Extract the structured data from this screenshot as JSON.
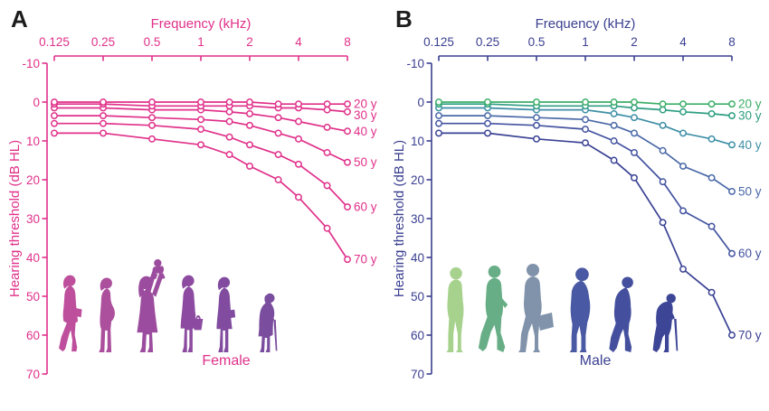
{
  "figure": {
    "panels": [
      {
        "label": "A",
        "gender_label": "Female",
        "accent_color": "#E0308A",
        "x_axis": {
          "title": "Frequency (kHz)",
          "tick_labels": [
            "0.125",
            "0.25",
            "0.5",
            "1",
            "2",
            "4",
            "8"
          ]
        },
        "y_axis": {
          "title": "Hearing threshold (dB HL)",
          "tick_labels": [
            "-10",
            "0",
            "10",
            "20",
            "30",
            "40",
            "50",
            "60",
            "70"
          ]
        },
        "silhouettes": [
          {
            "name": "young-woman",
            "color": "#BE4F9C"
          },
          {
            "name": "pregnant-woman",
            "color": "#AC4F9D"
          },
          {
            "name": "mother-with-baby",
            "color": "#9C4C9E"
          },
          {
            "name": "woman-with-handbag",
            "color": "#8C4BA0"
          },
          {
            "name": "mature-woman",
            "color": "#814BA0"
          },
          {
            "name": "elderly-woman-with-cane",
            "color": "#7A4D9E"
          }
        ]
      },
      {
        "label": "B",
        "gender_label": "Male",
        "accent_color": "#3A3F90",
        "x_axis": {
          "title": "Frequency (kHz)",
          "tick_labels": [
            "0.125",
            "0.25",
            "0.5",
            "1",
            "2",
            "4",
            "8"
          ]
        },
        "y_axis": {
          "title": "Hearing threshold (dB HL)",
          "tick_labels": [
            "-10",
            "0",
            "10",
            "20",
            "30",
            "40",
            "50",
            "60",
            "70"
          ]
        },
        "silhouettes": [
          {
            "name": "young-man",
            "color": "#A6D28E"
          },
          {
            "name": "walking-man",
            "color": "#67AE86"
          },
          {
            "name": "man-with-briefcase",
            "color": "#8093AA"
          },
          {
            "name": "heavy-man",
            "color": "#4A59A3"
          },
          {
            "name": "stooped-man",
            "color": "#44509D"
          },
          {
            "name": "elderly-man-with-cane",
            "color": "#3D4596"
          }
        ]
      }
    ]
  },
  "chart_data": [
    {
      "type": "line",
      "panel": "A",
      "group": "Female",
      "xlabel": "Frequency (kHz)",
      "ylabel": "Hearing threshold (dB HL)",
      "x": [
        0.125,
        0.25,
        0.5,
        1,
        1.5,
        2,
        3,
        4,
        6,
        8
      ],
      "x_scale": "log2",
      "x_tick_labels": [
        "0.125",
        "0.25",
        "0.5",
        "1",
        "2",
        "4",
        "8"
      ],
      "ylim": [
        -10,
        70
      ],
      "y_axis_inverted": true,
      "marker": "open-circle",
      "legend_position": "right-of-lines",
      "series": [
        {
          "name": "20 y",
          "color": "#E0308A",
          "values": [
            0,
            0,
            0,
            0,
            0,
            0,
            0.5,
            0.5,
            0.5,
            0.5
          ]
        },
        {
          "name": "30 y",
          "color": "#E0308A",
          "values": [
            0.5,
            0.5,
            1,
            1,
            1,
            1,
            1.5,
            1.5,
            2,
            2.5
          ]
        },
        {
          "name": "40 y",
          "color": "#E0308A",
          "values": [
            1.5,
            1.5,
            2,
            2,
            2.5,
            3,
            4,
            5,
            6.5,
            7.5
          ]
        },
        {
          "name": "50 y",
          "color": "#E0308A",
          "values": [
            3.5,
            3.5,
            4,
            4.5,
            5,
            6,
            8,
            9.5,
            13,
            15.5
          ]
        },
        {
          "name": "60 y",
          "color": "#E0308A",
          "values": [
            5.5,
            5.5,
            6,
            7,
            9,
            11,
            13.5,
            16,
            21.5,
            27
          ]
        },
        {
          "name": "70 y",
          "color": "#E0308A",
          "values": [
            8,
            8,
            9.5,
            11,
            13.5,
            16.5,
            20,
            24.5,
            32.5,
            40.5
          ]
        }
      ]
    },
    {
      "type": "line",
      "panel": "B",
      "group": "Male",
      "xlabel": "Frequency (kHz)",
      "ylabel": "Hearing threshold (dB HL)",
      "x": [
        0.125,
        0.25,
        0.5,
        1,
        1.5,
        2,
        3,
        4,
        6,
        8
      ],
      "x_scale": "log2",
      "x_tick_labels": [
        "0.125",
        "0.25",
        "0.5",
        "1",
        "2",
        "4",
        "8"
      ],
      "ylim": [
        -10,
        70
      ],
      "y_axis_inverted": true,
      "marker": "open-circle",
      "legend_position": "right-of-lines",
      "series": [
        {
          "name": "20 y",
          "color": "#3CAE67",
          "values": [
            0,
            0,
            0,
            0,
            0,
            0,
            0.5,
            0.5,
            0.5,
            0.5
          ]
        },
        {
          "name": "30 y",
          "color": "#2E9E82",
          "values": [
            0.5,
            0.5,
            1,
            1,
            1,
            1.5,
            2,
            2.5,
            3,
            3.5
          ]
        },
        {
          "name": "40 y",
          "color": "#3E8FA6",
          "values": [
            1.5,
            1.5,
            2,
            2,
            3,
            4,
            6,
            8,
            9.5,
            11
          ]
        },
        {
          "name": "50 y",
          "color": "#4A69A8",
          "values": [
            3.5,
            3.5,
            4,
            4.5,
            6,
            8,
            12.5,
            16.5,
            19.5,
            23
          ]
        },
        {
          "name": "60 y",
          "color": "#4353A0",
          "values": [
            5.5,
            5.5,
            6,
            7,
            10,
            13,
            20.5,
            28,
            32,
            39
          ]
        },
        {
          "name": "70 y",
          "color": "#3A4294",
          "values": [
            8,
            8,
            9.5,
            10.5,
            15,
            19.5,
            31,
            43,
            49,
            60
          ]
        }
      ]
    }
  ]
}
